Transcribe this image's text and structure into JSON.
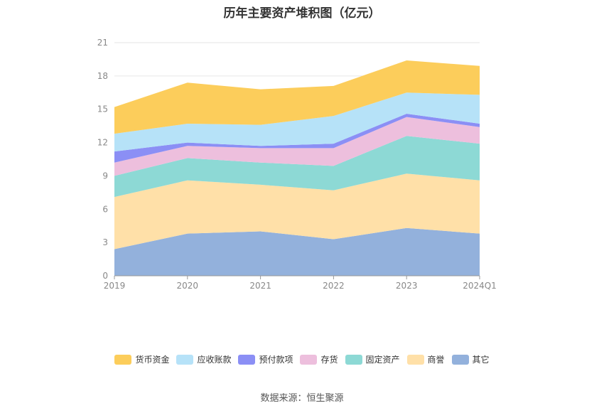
{
  "chart_data": {
    "type": "area",
    "stacked": true,
    "title": "历年主要资产堆积图（亿元）",
    "categories": [
      "2019",
      "2020",
      "2021",
      "2022",
      "2023",
      "2024Q1"
    ],
    "ylim": [
      0,
      21
    ],
    "yticks": [
      0,
      3,
      6,
      9,
      12,
      15,
      18,
      21
    ],
    "grid": true,
    "legend_position": "bottom",
    "series": [
      {
        "name": "其它",
        "color": "#93b1dc",
        "values": [
          2.4,
          3.8,
          4.0,
          3.3,
          4.3,
          3.8
        ]
      },
      {
        "name": "商誉",
        "color": "#ffe0a8",
        "values": [
          4.7,
          4.8,
          4.2,
          4.4,
          4.9,
          4.8
        ]
      },
      {
        "name": "固定资产",
        "color": "#8dd9d5",
        "values": [
          1.9,
          2.0,
          2.0,
          2.2,
          3.4,
          3.3
        ]
      },
      {
        "name": "存货",
        "color": "#edbfdd",
        "values": [
          1.2,
          1.1,
          1.3,
          1.6,
          1.7,
          1.5
        ]
      },
      {
        "name": "预付款项",
        "color": "#8b8ff5",
        "values": [
          1.0,
          0.3,
          0.2,
          0.4,
          0.3,
          0.3
        ]
      },
      {
        "name": "应收账款",
        "color": "#b6e2f8",
        "values": [
          1.6,
          1.7,
          1.9,
          2.5,
          1.9,
          2.6
        ]
      },
      {
        "name": "货币资金",
        "color": "#fccd5b",
        "values": [
          2.4,
          3.7,
          3.2,
          2.7,
          2.9,
          2.6
        ]
      }
    ],
    "legend_order": [
      "货币资金",
      "应收账款",
      "预付款项",
      "存货",
      "固定资产",
      "商誉",
      "其它"
    ]
  },
  "source": "数据来源：恒生聚源"
}
